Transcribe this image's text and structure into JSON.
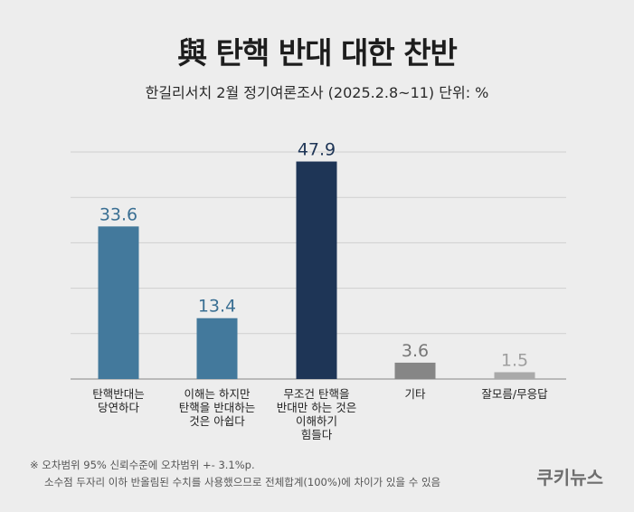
{
  "title": "與 탄핵 반대 대한 찬반",
  "subtitle": "한길리서치 2월 정기여론조사 (2025.2.8~11) 단위: %",
  "chart_data": {
    "type": "bar",
    "title": "與 탄핵 반대 대한 찬반",
    "categories": [
      [
        "탄핵반대는",
        "당연하다"
      ],
      [
        "이해는 하지만",
        "탄핵을 반대하는",
        "것은 아쉽다"
      ],
      [
        "무조건 탄핵을",
        "반대만 하는 것은",
        "이해하기",
        "힘들다"
      ],
      [
        "기타"
      ],
      [
        "잘모름/무응답"
      ]
    ],
    "values": [
      33.6,
      13.4,
      47.9,
      3.6,
      1.5
    ],
    "value_labels": [
      "33.6",
      "13.4",
      "47.9",
      "3.6",
      "1.5"
    ],
    "bar_colors": [
      "#43799c",
      "#43799c",
      "#1e3556",
      "#868686",
      "#a9a9a9"
    ],
    "label_colors": [
      "#3a6f93",
      "#3a6f93",
      "#1e3556",
      "#777777",
      "#9e9e9e"
    ],
    "ylim": [
      0,
      50
    ],
    "grid": true,
    "xlabel": "",
    "ylabel": "단위: %"
  },
  "footnote": {
    "line1": "※ 오차범위 95% 신뢰수준에 오차범위 +- 3.1%p.",
    "line2": "소수점 두자리 이하 반올림된 수치를 사용했으므로 전체합계(100%)에 차이가 있을 수 있음"
  },
  "brand": "쿠키뉴스"
}
